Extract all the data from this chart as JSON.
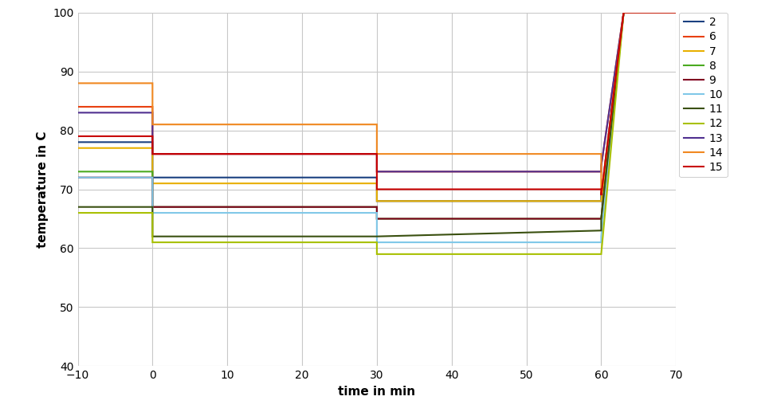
{
  "xlabel": "time in min",
  "ylabel": "temperature in C",
  "xlim": [
    -10,
    70
  ],
  "ylim": [
    40,
    100
  ],
  "xticks": [
    -10,
    0,
    10,
    20,
    30,
    40,
    50,
    60,
    70
  ],
  "yticks": [
    40,
    50,
    60,
    70,
    80,
    90,
    100
  ],
  "background": "#ffffff",
  "grid_color": "#c8c8c8",
  "series": [
    {
      "label": "2",
      "color": "#1a4080",
      "data": [
        [
          -10,
          78
        ],
        [
          0,
          78
        ],
        [
          0,
          72
        ],
        [
          30,
          72
        ],
        [
          30,
          68
        ],
        [
          60,
          68
        ],
        [
          60,
          69
        ],
        [
          63,
          100
        ],
        [
          70,
          100
        ]
      ]
    },
    {
      "label": "6",
      "color": "#e84010",
      "data": [
        [
          -10,
          84
        ],
        [
          0,
          84
        ],
        [
          0,
          76
        ],
        [
          30,
          76
        ],
        [
          30,
          73
        ],
        [
          60,
          73
        ],
        [
          60,
          74
        ],
        [
          63,
          100
        ],
        [
          70,
          100
        ]
      ]
    },
    {
      "label": "7",
      "color": "#e8b000",
      "data": [
        [
          -10,
          77
        ],
        [
          0,
          77
        ],
        [
          0,
          71
        ],
        [
          30,
          71
        ],
        [
          30,
          68
        ],
        [
          60,
          68
        ],
        [
          60,
          68
        ],
        [
          63,
          100
        ],
        [
          70,
          100
        ]
      ]
    },
    {
      "label": "8",
      "color": "#4aaa20",
      "data": [
        [
          -10,
          73
        ],
        [
          0,
          73
        ],
        [
          0,
          67
        ],
        [
          30,
          67
        ],
        [
          30,
          65
        ],
        [
          60,
          65
        ],
        [
          60,
          65
        ],
        [
          63,
          100
        ],
        [
          70,
          100
        ]
      ]
    },
    {
      "label": "9",
      "color": "#800020",
      "data": [
        [
          -10,
          72
        ],
        [
          0,
          72
        ],
        [
          0,
          67
        ],
        [
          30,
          67
        ],
        [
          30,
          65
        ],
        [
          60,
          65
        ],
        [
          60,
          65
        ],
        [
          63,
          100
        ],
        [
          70,
          100
        ]
      ]
    },
    {
      "label": "10",
      "color": "#80c8e8",
      "data": [
        [
          -10,
          72
        ],
        [
          0,
          72
        ],
        [
          0,
          66
        ],
        [
          30,
          66
        ],
        [
          30,
          61
        ],
        [
          60,
          61
        ],
        [
          60,
          62
        ],
        [
          63,
          100
        ],
        [
          70,
          100
        ]
      ]
    },
    {
      "label": "11",
      "color": "#3a5010",
      "data": [
        [
          -10,
          67
        ],
        [
          0,
          67
        ],
        [
          0,
          62
        ],
        [
          30,
          62
        ],
        [
          30,
          62
        ],
        [
          60,
          63
        ],
        [
          60,
          65
        ],
        [
          63,
          100
        ],
        [
          70,
          100
        ]
      ]
    },
    {
      "label": "12",
      "color": "#a8c000",
      "data": [
        [
          -10,
          66
        ],
        [
          0,
          66
        ],
        [
          0,
          61
        ],
        [
          30,
          61
        ],
        [
          30,
          59
        ],
        [
          60,
          59
        ],
        [
          60,
          59
        ],
        [
          63,
          100
        ],
        [
          70,
          100
        ]
      ]
    },
    {
      "label": "13",
      "color": "#503090",
      "data": [
        [
          -10,
          83
        ],
        [
          0,
          83
        ],
        [
          0,
          76
        ],
        [
          30,
          76
        ],
        [
          30,
          73
        ],
        [
          60,
          73
        ],
        [
          60,
          74
        ],
        [
          63,
          100
        ],
        [
          70,
          100
        ]
      ]
    },
    {
      "label": "14",
      "color": "#f08820",
      "data": [
        [
          -10,
          88
        ],
        [
          0,
          88
        ],
        [
          0,
          81
        ],
        [
          30,
          81
        ],
        [
          30,
          76
        ],
        [
          60,
          76
        ],
        [
          60,
          69
        ],
        [
          63,
          100
        ],
        [
          70,
          100
        ]
      ]
    },
    {
      "label": "15",
      "color": "#c80000",
      "data": [
        [
          -10,
          79
        ],
        [
          0,
          79
        ],
        [
          0,
          76
        ],
        [
          30,
          76
        ],
        [
          30,
          70
        ],
        [
          60,
          70
        ],
        [
          60,
          69
        ],
        [
          63,
          100
        ],
        [
          70,
          100
        ]
      ]
    }
  ]
}
